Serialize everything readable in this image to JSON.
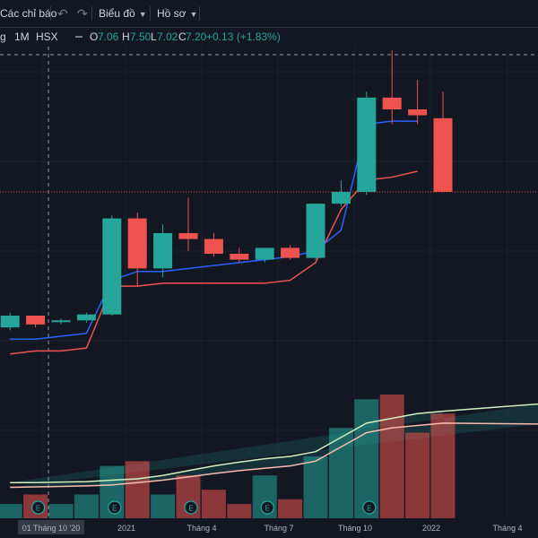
{
  "toolbar": {
    "indicators_label": "Các chỉ báo",
    "chart_type_label": "Biểu đồ",
    "profile_label": "Hồ sơ"
  },
  "symbol": {
    "tail": "g",
    "interval": "1M",
    "exchange": "HSX",
    "ohlc": {
      "o_key": "O",
      "o_val": "7.06",
      "h_key": "H",
      "h_val": "7.50",
      "l_key": "L",
      "l_val": "7.02",
      "c_key": "C",
      "c_val": "7.20",
      "change": "+0.13 (+1.83%)"
    }
  },
  "colors": {
    "background": "#131722",
    "up": "#26a69a",
    "down": "#ef5350",
    "ma_fast": "#2962ff",
    "ma_slow": "#ef5350",
    "vol_ma_light": "#d0f0c0",
    "vol_ma_pink": "#f8bbb0",
    "earnings_badge": "#26a69a"
  },
  "icons": [
    "undo-icon",
    "redo-icon",
    "chevron-down-icon",
    "earnings-marker-icon",
    "minus-icon"
  ],
  "chart_data": {
    "type": "candlestick",
    "interval": "monthly",
    "x_tick_labels": [
      "01 Tháng 10 '20",
      "2021",
      "Tháng 4",
      "Tháng 7",
      "Tháng 10",
      "2022",
      "Tháng 4"
    ],
    "crosshair_label": "01 Tháng 10 '20",
    "candles": [
      {
        "o": 3.1,
        "h": 3.35,
        "l": 3.05,
        "c": 3.3
      },
      {
        "o": 3.3,
        "h": 3.3,
        "l": 3.1,
        "c": 3.15
      },
      {
        "o": 3.2,
        "h": 3.25,
        "l": 3.15,
        "c": 3.22
      },
      {
        "o": 3.22,
        "h": 3.35,
        "l": 3.18,
        "c": 3.32
      },
      {
        "o": 3.32,
        "h": 5.0,
        "l": 3.3,
        "c": 4.95
      },
      {
        "o": 4.95,
        "h": 5.05,
        "l": 3.8,
        "c": 4.1
      },
      {
        "o": 4.1,
        "h": 4.85,
        "l": 3.95,
        "c": 4.7
      },
      {
        "o": 4.7,
        "h": 5.3,
        "l": 4.4,
        "c": 4.6
      },
      {
        "o": 4.6,
        "h": 4.7,
        "l": 4.3,
        "c": 4.35
      },
      {
        "o": 4.35,
        "h": 4.45,
        "l": 4.2,
        "c": 4.25
      },
      {
        "o": 4.25,
        "h": 4.45,
        "l": 4.2,
        "c": 4.45
      },
      {
        "o": 4.45,
        "h": 4.5,
        "l": 4.25,
        "c": 4.28
      },
      {
        "o": 4.28,
        "h": 5.2,
        "l": 4.25,
        "c": 5.2
      },
      {
        "o": 5.2,
        "h": 5.6,
        "l": 5.15,
        "c": 5.4
      },
      {
        "o": 5.4,
        "h": 7.1,
        "l": 5.35,
        "c": 7.0
      },
      {
        "o": 7.0,
        "h": 7.8,
        "l": 6.55,
        "c": 6.8
      },
      {
        "o": 6.8,
        "h": 7.3,
        "l": 6.55,
        "c": 6.7
      },
      {
        "o": 6.65,
        "h": 7.1,
        "l": 5.4,
        "c": 5.4
      }
    ],
    "ma_fast": [
      2.9,
      2.9,
      2.95,
      3.0,
      3.9,
      4.05,
      4.05,
      4.1,
      4.15,
      4.2,
      4.25,
      4.3,
      4.4,
      4.75,
      6.55,
      6.6,
      6.6,
      null
    ],
    "ma_slow": [
      2.65,
      2.7,
      2.7,
      2.75,
      3.8,
      3.8,
      3.85,
      3.85,
      3.85,
      3.85,
      3.85,
      3.9,
      4.2,
      5.1,
      5.6,
      5.65,
      5.75,
      null
    ],
    "price_line": 5.4,
    "volume": [
      3,
      5,
      3,
      5,
      11,
      12,
      5,
      9,
      6,
      3,
      9,
      4,
      13,
      19,
      25,
      26,
      18,
      22
    ],
    "vol_ma_light": [
      7.5,
      7.5,
      7.6,
      7.7,
      8.0,
      8.3,
      9.0,
      10.0,
      11.0,
      11.8,
      12.5,
      13.0,
      14.0,
      17.0,
      20.0,
      21.0,
      22.0,
      22.5
    ],
    "vol_ma_pink": [
      6.5,
      6.6,
      6.7,
      6.8,
      7.0,
      7.5,
      8.0,
      8.7,
      9.4,
      10.0,
      10.5,
      11.0,
      12.0,
      15.0,
      18.0,
      19.0,
      19.5,
      20.0
    ],
    "earnings_markers": [
      1,
      4,
      7,
      10,
      14
    ],
    "earnings_label": "E",
    "grid": true
  }
}
